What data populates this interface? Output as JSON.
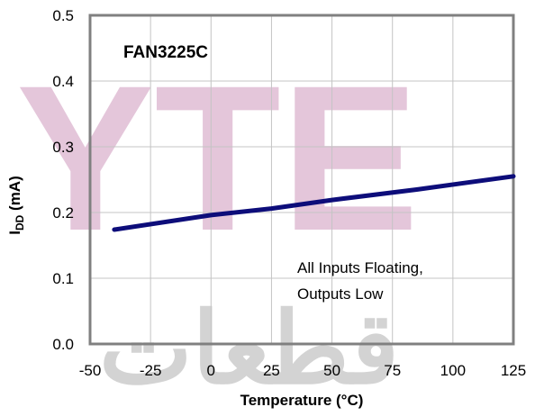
{
  "watermark": {
    "latin": "YTE",
    "arabic": "قطعات",
    "latin_color": "#b45f96",
    "arabic_color": "#6f6f6f"
  },
  "chart_data": {
    "type": "line",
    "title": "",
    "xlabel": "Temperature (°C)",
    "ylabel": "IDD (mA)",
    "ylabel_main": "I",
    "ylabel_sub": "DD",
    "ylabel_unit": " (mA)",
    "xlim": [
      -50,
      125
    ],
    "ylim": [
      0.0,
      0.5
    ],
    "x_ticks": [
      -50,
      -25,
      0,
      25,
      50,
      75,
      100,
      125
    ],
    "y_ticks": [
      0.0,
      0.1,
      0.2,
      0.3,
      0.4,
      0.5
    ],
    "x_tick_labels": [
      "-50",
      "-25",
      "0",
      "25",
      "50",
      "75",
      "100",
      "125"
    ],
    "y_tick_labels": [
      "0.0",
      "0.1",
      "0.2",
      "0.3",
      "0.4",
      "0.5"
    ],
    "grid": true,
    "series": [
      {
        "color": "#0d0d7a",
        "x": [
          -40,
          0,
          25,
          50,
          85,
          125
        ],
        "y": [
          0.174,
          0.196,
          0.206,
          0.219,
          0.235,
          0.255
        ]
      }
    ],
    "annotations": {
      "part_label": "FAN3225C",
      "condition_line1": "All Inputs Floating,",
      "condition_line2": "Outputs Low"
    }
  }
}
